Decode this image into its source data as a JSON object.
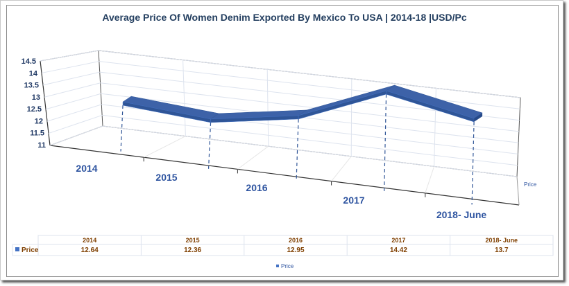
{
  "chart_data": {
    "type": "line",
    "variant": "3d-ribbon",
    "title": "Average Price Of Women Denim Exported By Mexico To USA | 2014-18 |USD/Pc",
    "categories": [
      "2014",
      "2015",
      "2016",
      "2017",
      "2018- June"
    ],
    "series": [
      {
        "name": "Price",
        "values": [
          12.64,
          12.36,
          12.95,
          14.42,
          13.7
        ],
        "color": "#2f5597"
      }
    ],
    "xlabel": "",
    "ylabel": "",
    "ylim": [
      11,
      14.5
    ],
    "yticks": [
      "11",
      "11.5",
      "12",
      "12.5",
      "13",
      "13.5",
      "14",
      "14.5"
    ],
    "grid": true,
    "depth_axis_label": "Price",
    "data_table": {
      "row_label": "Price",
      "headers": [
        "2014",
        "2015",
        "2016",
        "2017",
        "2018- June"
      ],
      "values": [
        "12.64",
        "12.36",
        "12.95",
        "14.42",
        "13.7"
      ]
    },
    "legend": {
      "label": "Price",
      "position": "bottom"
    }
  }
}
